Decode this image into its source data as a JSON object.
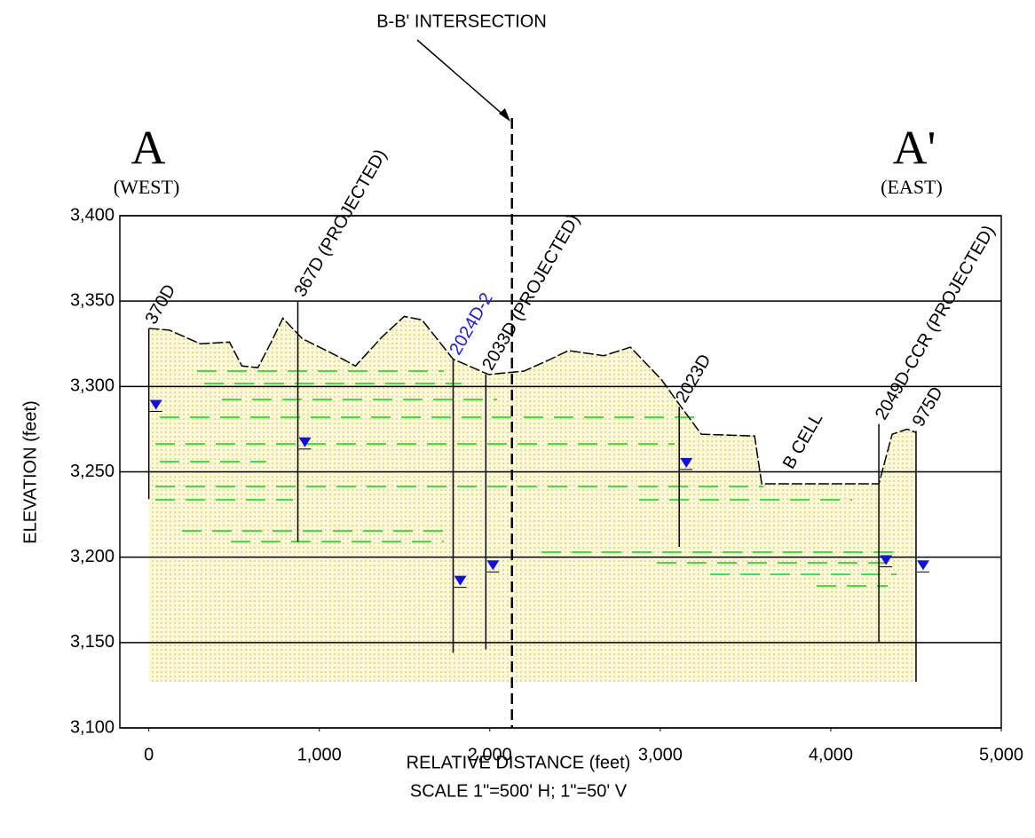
{
  "chart_data": {
    "type": "cross_section",
    "title": "B-B' INTERSECTION",
    "xlabel": "RELATIVE DISTANCE (feet)",
    "subtitle": "SCALE 1\"=500' H; 1\"=50' V",
    "ylabel": "ELEVATION (feet)",
    "west_label": "A",
    "west_note": "(WEST)",
    "east_label": "A'",
    "east_note": "(EAST)",
    "area_label": "B CELL",
    "xlim": [
      -170,
      5000
    ],
    "ylim": [
      3100,
      3400
    ],
    "xticks": [
      0,
      {
        "value": 1000,
        "label": "1,000"
      },
      {
        "value": 2000,
        "label": "2,000"
      },
      {
        "value": 3000,
        "label": "3,000"
      },
      {
        "value": 4000,
        "label": "4,000"
      },
      {
        "value": 5000,
        "label": "5,000"
      }
    ],
    "yticks": [
      {
        "value": 3100,
        "label": "3,100"
      },
      {
        "value": 3150,
        "label": "3,150"
      },
      {
        "value": 3200,
        "label": "3,200"
      },
      {
        "value": 3250,
        "label": "3,250"
      },
      {
        "value": 3300,
        "label": "3,300"
      },
      {
        "value": 3350,
        "label": "3,350"
      },
      {
        "value": 3400,
        "label": "3,400"
      }
    ],
    "grid": true,
    "intersection_x": 2130,
    "ground": {
      "color": "#000000",
      "fill": "#e8e08a",
      "x": [
        0,
        120,
        302,
        473,
        546,
        640,
        718,
        786,
        900,
        1082,
        1212,
        1368,
        1498,
        1602,
        1785,
        1993,
        2201,
        2357,
        2461,
        2669,
        2825,
        3007,
        3137,
        3241,
        3553,
        3595,
        4282,
        4360,
        4448,
        4500
      ],
      "elevation": [
        3334,
        3333,
        3325,
        3326,
        3312,
        3311,
        3326,
        3340,
        3328,
        3319,
        3312,
        3329,
        3341,
        3339,
        3316,
        3307,
        3309,
        3316,
        3321,
        3318,
        3323,
        3304,
        3286,
        3272,
        3271,
        3243,
        3243,
        3272,
        3275,
        3273
      ]
    },
    "water_color": "#1010e0",
    "borings": [
      {
        "name": "370D",
        "color": "#000000",
        "x": 0,
        "top": 3334,
        "bottom": 3234,
        "water": 3289
      },
      {
        "name": "367D (PROJECTED)",
        "color": "#000000",
        "x": 874,
        "top": 3350,
        "bottom": 3209,
        "water": 3267
      },
      {
        "name": "2024D-2",
        "color": "#1a1ae6",
        "x": 1785,
        "top": 3316,
        "bottom": 3144,
        "water": 3186
      },
      {
        "name": "2033D (PROJECTED)",
        "color": "#000000",
        "x": 1977,
        "top": 3307,
        "bottom": 3146,
        "water": 3195
      },
      {
        "name": "2023D",
        "color": "#000000",
        "x": 3111,
        "top": 3288,
        "bottom": 3206,
        "water": 3255
      },
      {
        "name": "2049D-CCR (PROJECTED)",
        "color": "#000000",
        "x": 4282,
        "top": 3278,
        "bottom": 3150,
        "water": 3198
      },
      {
        "name": "975D",
        "color": "#000000",
        "x": 4500,
        "top": 3274,
        "bottom": 3127,
        "water": 3195
      }
    ]
  }
}
